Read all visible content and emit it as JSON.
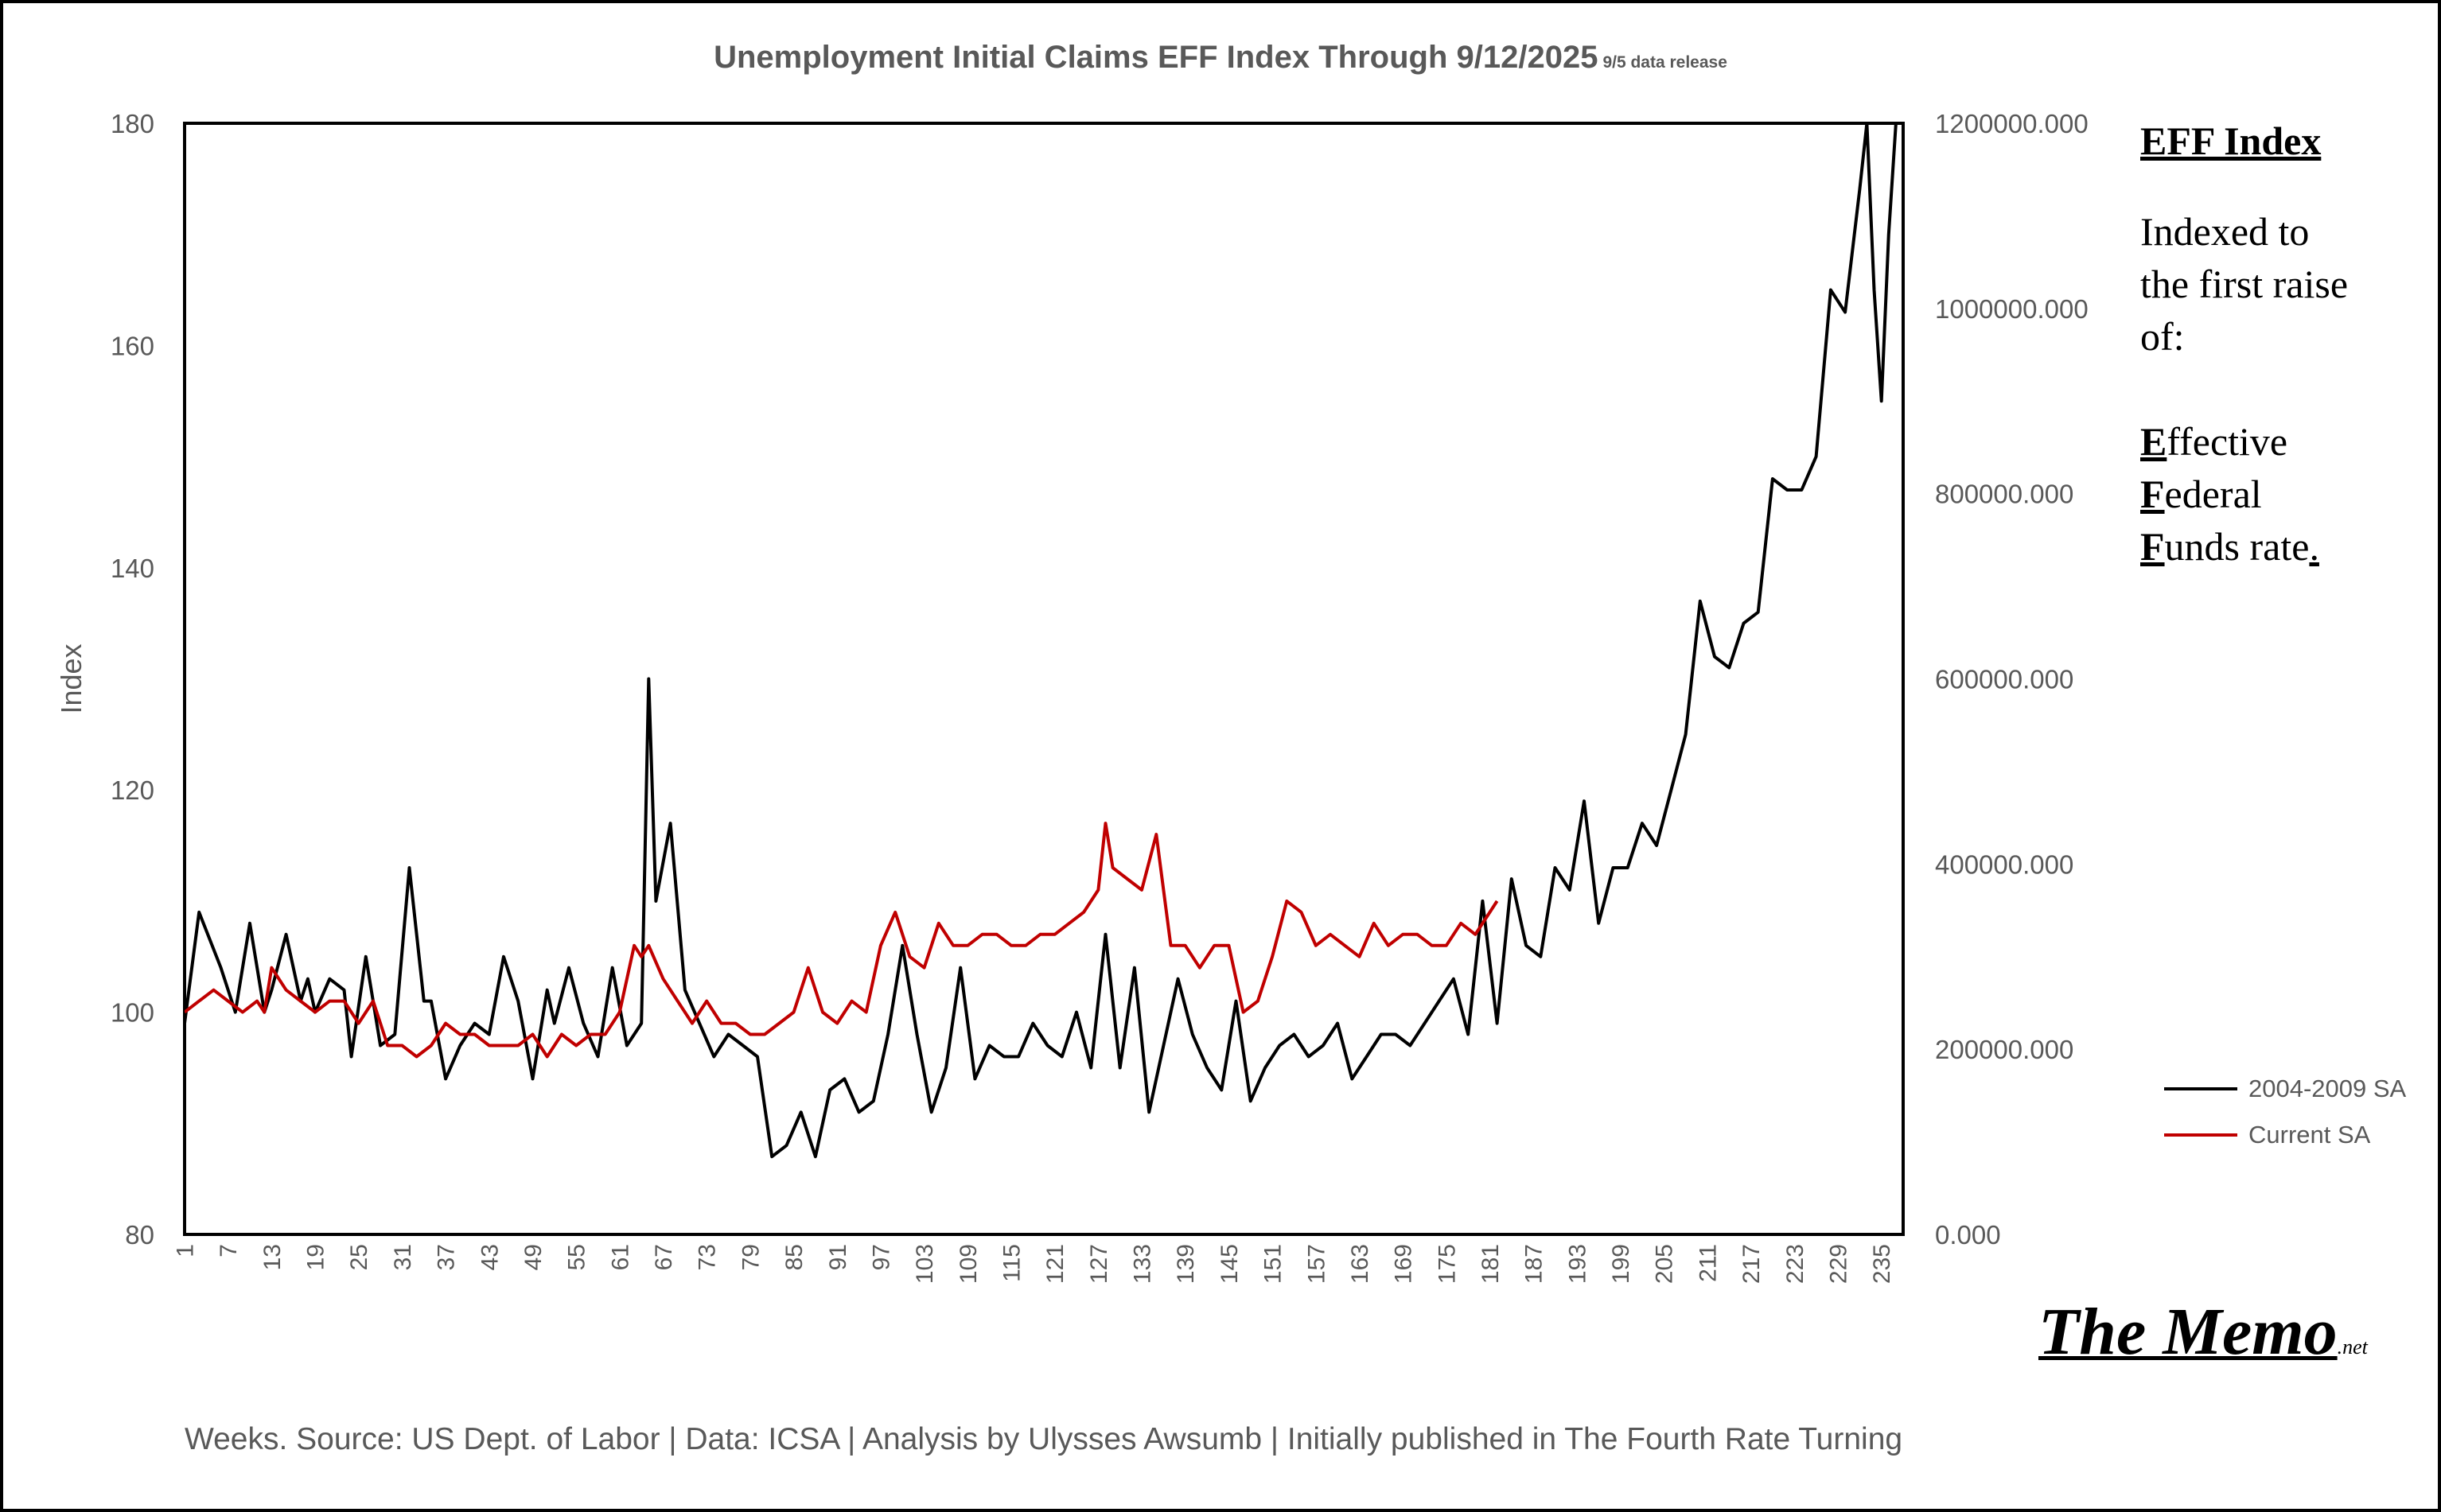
{
  "title": {
    "main": "Unemployment Initial Claims EFF Index Through 9/12/2025",
    "sub": "9/5 data release"
  },
  "sidebar": {
    "heading": "EFF Index",
    "intro": [
      "Indexed to",
      "the first raise",
      "of:"
    ],
    "definition": [
      {
        "initial": "E",
        "rest": "ffective"
      },
      {
        "initial": "F",
        "rest": "ederal"
      },
      {
        "initial": "F",
        "rest": "unds rate",
        "tail": "."
      }
    ]
  },
  "logo": {
    "name": "The Memo",
    "tld": ".net"
  },
  "footer": "Weeks. Source: US Dept. of Labor | Data: ICSA | Analysis by Ulysses Awsumb | Initially published in The Fourth Rate Turning",
  "colors": {
    "series_2004_2009": "#000000",
    "series_current": "#c00000",
    "text": "#595959"
  },
  "chart_data": {
    "type": "line",
    "title": "Unemployment Initial Claims EFF Index Through 9/12/2025",
    "xlabel": "Weeks",
    "ylabel": "Index",
    "ylim": [
      80,
      180
    ],
    "y_ticks": [
      80,
      100,
      120,
      140,
      160,
      180
    ],
    "y2lim": [
      0,
      1200000
    ],
    "y2_ticks": [
      "0.000",
      "200000.000",
      "400000.000",
      "600000.000",
      "800000.000",
      "1000000.000",
      "1200000.000"
    ],
    "x_range": [
      1,
      238
    ],
    "x_ticks": [
      1,
      7,
      13,
      19,
      25,
      31,
      37,
      43,
      49,
      55,
      61,
      67,
      73,
      79,
      85,
      91,
      97,
      103,
      109,
      115,
      121,
      127,
      133,
      139,
      145,
      151,
      157,
      163,
      169,
      175,
      181,
      187,
      193,
      199,
      205,
      211,
      217,
      223,
      229,
      235
    ],
    "legend_position": "right",
    "series": [
      {
        "name": "2004-2009 SA",
        "color": "#000000",
        "x": [
          1,
          3,
          6,
          8,
          10,
          12,
          13,
          15,
          17,
          18,
          19,
          21,
          23,
          24,
          26,
          28,
          30,
          32,
          34,
          35,
          37,
          39,
          41,
          43,
          45,
          47,
          49,
          51,
          52,
          54,
          56,
          58,
          60,
          62,
          63,
          64,
          65,
          66,
          68,
          70,
          72,
          74,
          76,
          78,
          80,
          82,
          84,
          86,
          88,
          90,
          92,
          94,
          96,
          98,
          100,
          102,
          104,
          106,
          108,
          110,
          112,
          114,
          116,
          118,
          120,
          122,
          124,
          126,
          128,
          130,
          132,
          134,
          136,
          138,
          140,
          142,
          144,
          146,
          148,
          150,
          152,
          154,
          156,
          158,
          160,
          162,
          164,
          166,
          168,
          170,
          172,
          174,
          176,
          178,
          180,
          182,
          184,
          186,
          188,
          190,
          192,
          194,
          196,
          198,
          200,
          202,
          204,
          206,
          208,
          210,
          212,
          214,
          216,
          218,
          220,
          222,
          224,
          226,
          228,
          230,
          232,
          233,
          234,
          235,
          236,
          237,
          238
        ],
        "values": [
          99,
          109,
          104,
          100,
          108,
          100,
          102,
          107,
          101,
          103,
          100,
          103,
          102,
          96,
          105,
          97,
          98,
          113,
          101,
          101,
          94,
          97,
          99,
          98,
          105,
          101,
          94,
          102,
          99,
          104,
          99,
          96,
          104,
          97,
          98,
          99,
          130,
          110,
          117,
          102,
          99,
          96,
          98,
          97,
          96,
          87,
          88,
          91,
          87,
          93,
          94,
          91,
          92,
          98,
          106,
          98,
          91,
          95,
          104,
          94,
          97,
          96,
          96,
          99,
          97,
          96,
          100,
          95,
          107,
          95,
          104,
          91,
          97,
          103,
          98,
          95,
          93,
          101,
          92,
          95,
          97,
          98,
          96,
          97,
          99,
          94,
          96,
          98,
          98,
          97,
          99,
          101,
          103,
          98,
          110,
          99,
          112,
          106,
          105,
          113,
          111,
          119,
          108,
          113,
          113,
          117,
          115,
          120,
          125,
          137,
          132,
          131,
          135,
          136,
          148,
          147,
          147,
          150,
          165,
          163,
          174,
          180,
          165,
          155,
          170,
          180,
          180
        ]
      },
      {
        "name": "Current SA",
        "color": "#c00000",
        "x": [
          1,
          3,
          5,
          7,
          9,
          11,
          12,
          13,
          15,
          17,
          19,
          21,
          23,
          25,
          27,
          29,
          31,
          33,
          35,
          37,
          39,
          41,
          43,
          45,
          47,
          49,
          51,
          53,
          55,
          57,
          59,
          61,
          63,
          64,
          65,
          67,
          69,
          71,
          73,
          75,
          77,
          79,
          81,
          83,
          85,
          87,
          89,
          91,
          93,
          95,
          97,
          99,
          101,
          103,
          105,
          107,
          109,
          111,
          113,
          115,
          117,
          119,
          121,
          123,
          125,
          127,
          128,
          129,
          131,
          133,
          135,
          137,
          139,
          141,
          143,
          145,
          147,
          149,
          151,
          153,
          155,
          157,
          159,
          161,
          163,
          165,
          167,
          169,
          171,
          173,
          175,
          177,
          179,
          181,
          182
        ],
        "values": [
          100,
          101,
          102,
          101,
          100,
          101,
          100,
          104,
          102,
          101,
          100,
          101,
          101,
          99,
          101,
          97,
          97,
          96,
          97,
          99,
          98,
          98,
          97,
          97,
          97,
          98,
          96,
          98,
          97,
          98,
          98,
          100,
          106,
          105,
          106,
          103,
          101,
          99,
          101,
          99,
          99,
          98,
          98,
          99,
          100,
          104,
          100,
          99,
          101,
          100,
          106,
          109,
          105,
          104,
          108,
          106,
          106,
          107,
          107,
          106,
          106,
          107,
          107,
          108,
          109,
          111,
          117,
          113,
          112,
          111,
          116,
          106,
          106,
          104,
          106,
          106,
          100,
          101,
          105,
          110,
          109,
          106,
          107,
          106,
          105,
          108,
          106,
          107,
          107,
          106,
          106,
          108,
          107,
          109,
          110
        ]
      }
    ]
  }
}
